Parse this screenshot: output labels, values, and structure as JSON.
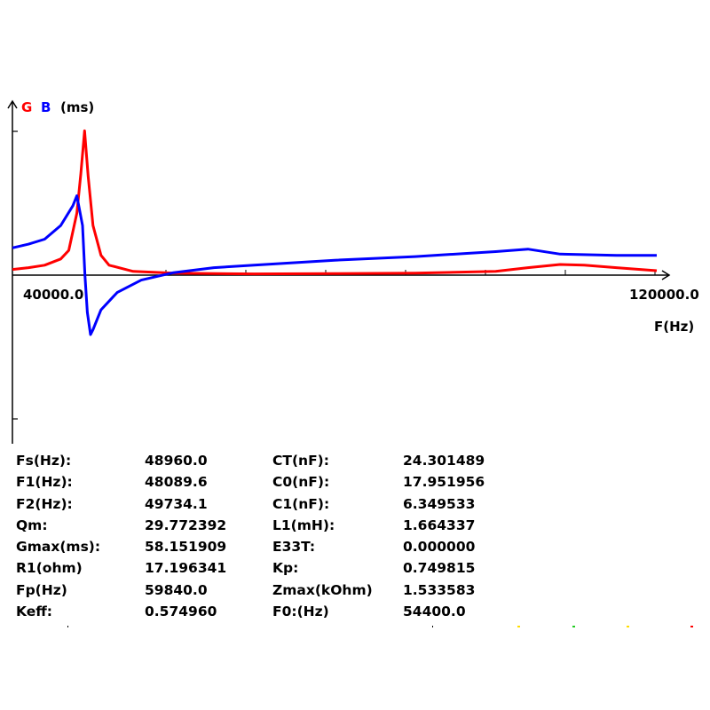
{
  "chart_data": {
    "type": "line",
    "y_unit_label": "(ms)",
    "series": [
      {
        "name": "G",
        "color": "#ff0000",
        "points": [
          [
            40000,
            2.3
          ],
          [
            42000,
            3.0
          ],
          [
            44000,
            4.0
          ],
          [
            46000,
            6.5
          ],
          [
            47000,
            10
          ],
          [
            48000,
            25
          ],
          [
            48500,
            41
          ],
          [
            48960,
            58.2
          ],
          [
            49400,
            40
          ],
          [
            50000,
            20
          ],
          [
            51000,
            8
          ],
          [
            52000,
            4
          ],
          [
            55000,
            1.5
          ],
          [
            60000,
            0.8
          ],
          [
            70000,
            0.5
          ],
          [
            80000,
            0.6
          ],
          [
            90000,
            0.8
          ],
          [
            100000,
            1.5
          ],
          [
            104000,
            3.0
          ],
          [
            108000,
            4.3
          ],
          [
            111000,
            4.0
          ],
          [
            115000,
            3.0
          ],
          [
            120000,
            1.8
          ]
        ]
      },
      {
        "name": "B",
        "color": "#0000ff",
        "points": [
          [
            40000,
            11
          ],
          [
            42000,
            12.5
          ],
          [
            44000,
            14.5
          ],
          [
            46000,
            20
          ],
          [
            47500,
            28
          ],
          [
            48000,
            32
          ],
          [
            48700,
            20
          ],
          [
            49000,
            0
          ],
          [
            49300,
            -15
          ],
          [
            49700,
            -24
          ],
          [
            50000,
            -22
          ],
          [
            51000,
            -14
          ],
          [
            53000,
            -7
          ],
          [
            56000,
            -2
          ],
          [
            60000,
            1
          ],
          [
            65000,
            3
          ],
          [
            70000,
            4
          ],
          [
            80000,
            6
          ],
          [
            90000,
            7.5
          ],
          [
            100000,
            9.5
          ],
          [
            104000,
            10.5
          ],
          [
            108000,
            8.5
          ],
          [
            115000,
            8.0
          ],
          [
            120000,
            8.0
          ]
        ]
      }
    ],
    "x_tick_labels": [
      "40000.0",
      "120000.0"
    ],
    "xlim": [
      40000,
      120000
    ],
    "ylim": [
      -58,
      58
    ],
    "xlabel": "F(Hz)"
  },
  "params": [
    [
      "Fs(Hz):",
      "48960.0",
      "CT(nF):",
      "24.301489"
    ],
    [
      "F1(Hz):",
      "48089.6",
      "C0(nF):",
      "17.951956"
    ],
    [
      "F2(Hz):",
      "49734.1",
      "C1(nF):",
      "6.349533"
    ],
    [
      "Qm:",
      "29.772392",
      "L1(mH):",
      "1.664337"
    ],
    [
      "Gmax(ms):",
      "58.151909",
      "E33T:",
      "0.000000"
    ],
    [
      "R1(ohm)",
      "17.196341",
      "Kp:",
      "0.749815"
    ],
    [
      "Fp(Hz)",
      "59840.0",
      "Zmax(kOhm)",
      "1.533583"
    ],
    [
      "Keff:",
      "0.574960",
      "F0:(Hz)",
      "54400.0"
    ]
  ]
}
